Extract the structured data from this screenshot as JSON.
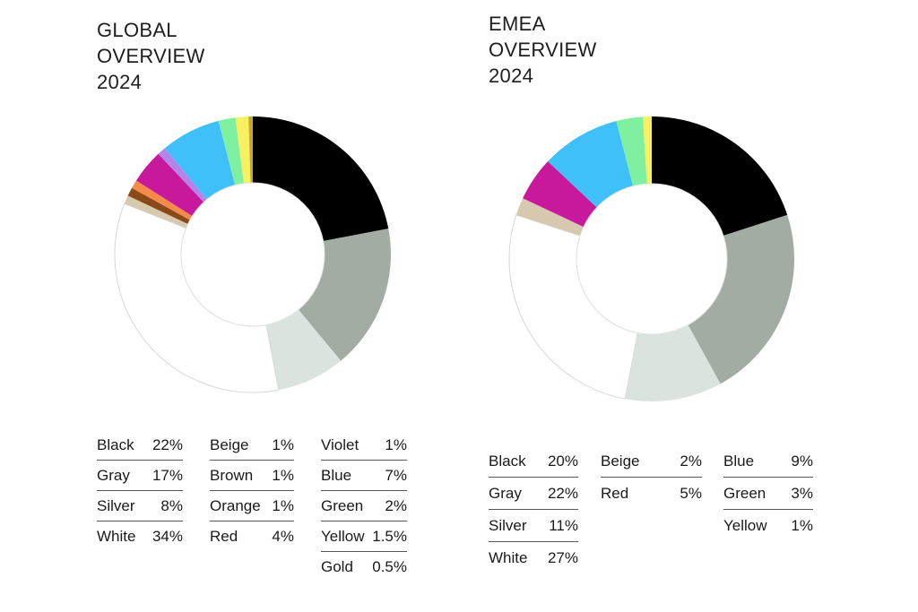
{
  "chart_data": [
    {
      "type": "pie",
      "title_lines": [
        "GLOBAL",
        "OVERVIEW",
        "2024"
      ],
      "unit": "%",
      "slices": [
        {
          "name": "Black",
          "label": "22%",
          "value": 22,
          "color": "#000000"
        },
        {
          "name": "Gray",
          "label": "17%",
          "value": 17,
          "color": "#a3aca3"
        },
        {
          "name": "Silver",
          "label": "8%",
          "value": 8,
          "color": "#dbe3df"
        },
        {
          "name": "White",
          "label": "34%",
          "value": 34,
          "color": "#ffffff"
        },
        {
          "name": "Beige",
          "label": "1%",
          "value": 1,
          "color": "#d7c8b0"
        },
        {
          "name": "Brown",
          "label": "1%",
          "value": 1,
          "color": "#8a4a18"
        },
        {
          "name": "Orange",
          "label": "1%",
          "value": 1,
          "color": "#f58a4a"
        },
        {
          "name": "Red",
          "label": "4%",
          "value": 4,
          "color": "#c8189c"
        },
        {
          "name": "Violet",
          "label": "1%",
          "value": 1,
          "color": "#b484e8"
        },
        {
          "name": "Blue",
          "label": "7%",
          "value": 7,
          "color": "#40c0f8"
        },
        {
          "name": "Green",
          "label": "2%",
          "value": 2,
          "color": "#7ef0a0"
        },
        {
          "name": "Yellow",
          "label": "1.5%",
          "value": 1.5,
          "color": "#f8f060"
        },
        {
          "name": "Gold",
          "label": "0.5%",
          "value": 0.5,
          "color": "#c8a828"
        }
      ],
      "legend_columns": [
        [
          "Black",
          "Gray",
          "Silver",
          "White"
        ],
        [
          "Beige",
          "Brown",
          "Orange",
          "Red"
        ],
        [
          "Violet",
          "Blue",
          "Green",
          "Yellow",
          "Gold"
        ]
      ]
    },
    {
      "type": "pie",
      "title_lines": [
        "EMEA",
        "OVERVIEW",
        "2024"
      ],
      "unit": "%",
      "slices": [
        {
          "name": "Black",
          "label": "20%",
          "value": 20,
          "color": "#000000"
        },
        {
          "name": "Gray",
          "label": "22%",
          "value": 22,
          "color": "#a3aca3"
        },
        {
          "name": "Silver",
          "label": "11%",
          "value": 11,
          "color": "#dbe3df"
        },
        {
          "name": "White",
          "label": "27%",
          "value": 27,
          "color": "#ffffff"
        },
        {
          "name": "Beige",
          "label": "2%",
          "value": 2,
          "color": "#d7c8b0"
        },
        {
          "name": "Red",
          "label": "5%",
          "value": 5,
          "color": "#c8189c"
        },
        {
          "name": "Blue",
          "label": "9%",
          "value": 9,
          "color": "#40c0f8"
        },
        {
          "name": "Green",
          "label": "3%",
          "value": 3,
          "color": "#7ef0a0"
        },
        {
          "name": "Yellow",
          "label": "1%",
          "value": 1,
          "color": "#f8f060"
        }
      ],
      "legend_columns": [
        [
          "Black",
          "Gray",
          "Silver",
          "White"
        ],
        [
          "Beige",
          "Red"
        ],
        [
          "Blue",
          "Green",
          "Yellow"
        ]
      ]
    }
  ]
}
